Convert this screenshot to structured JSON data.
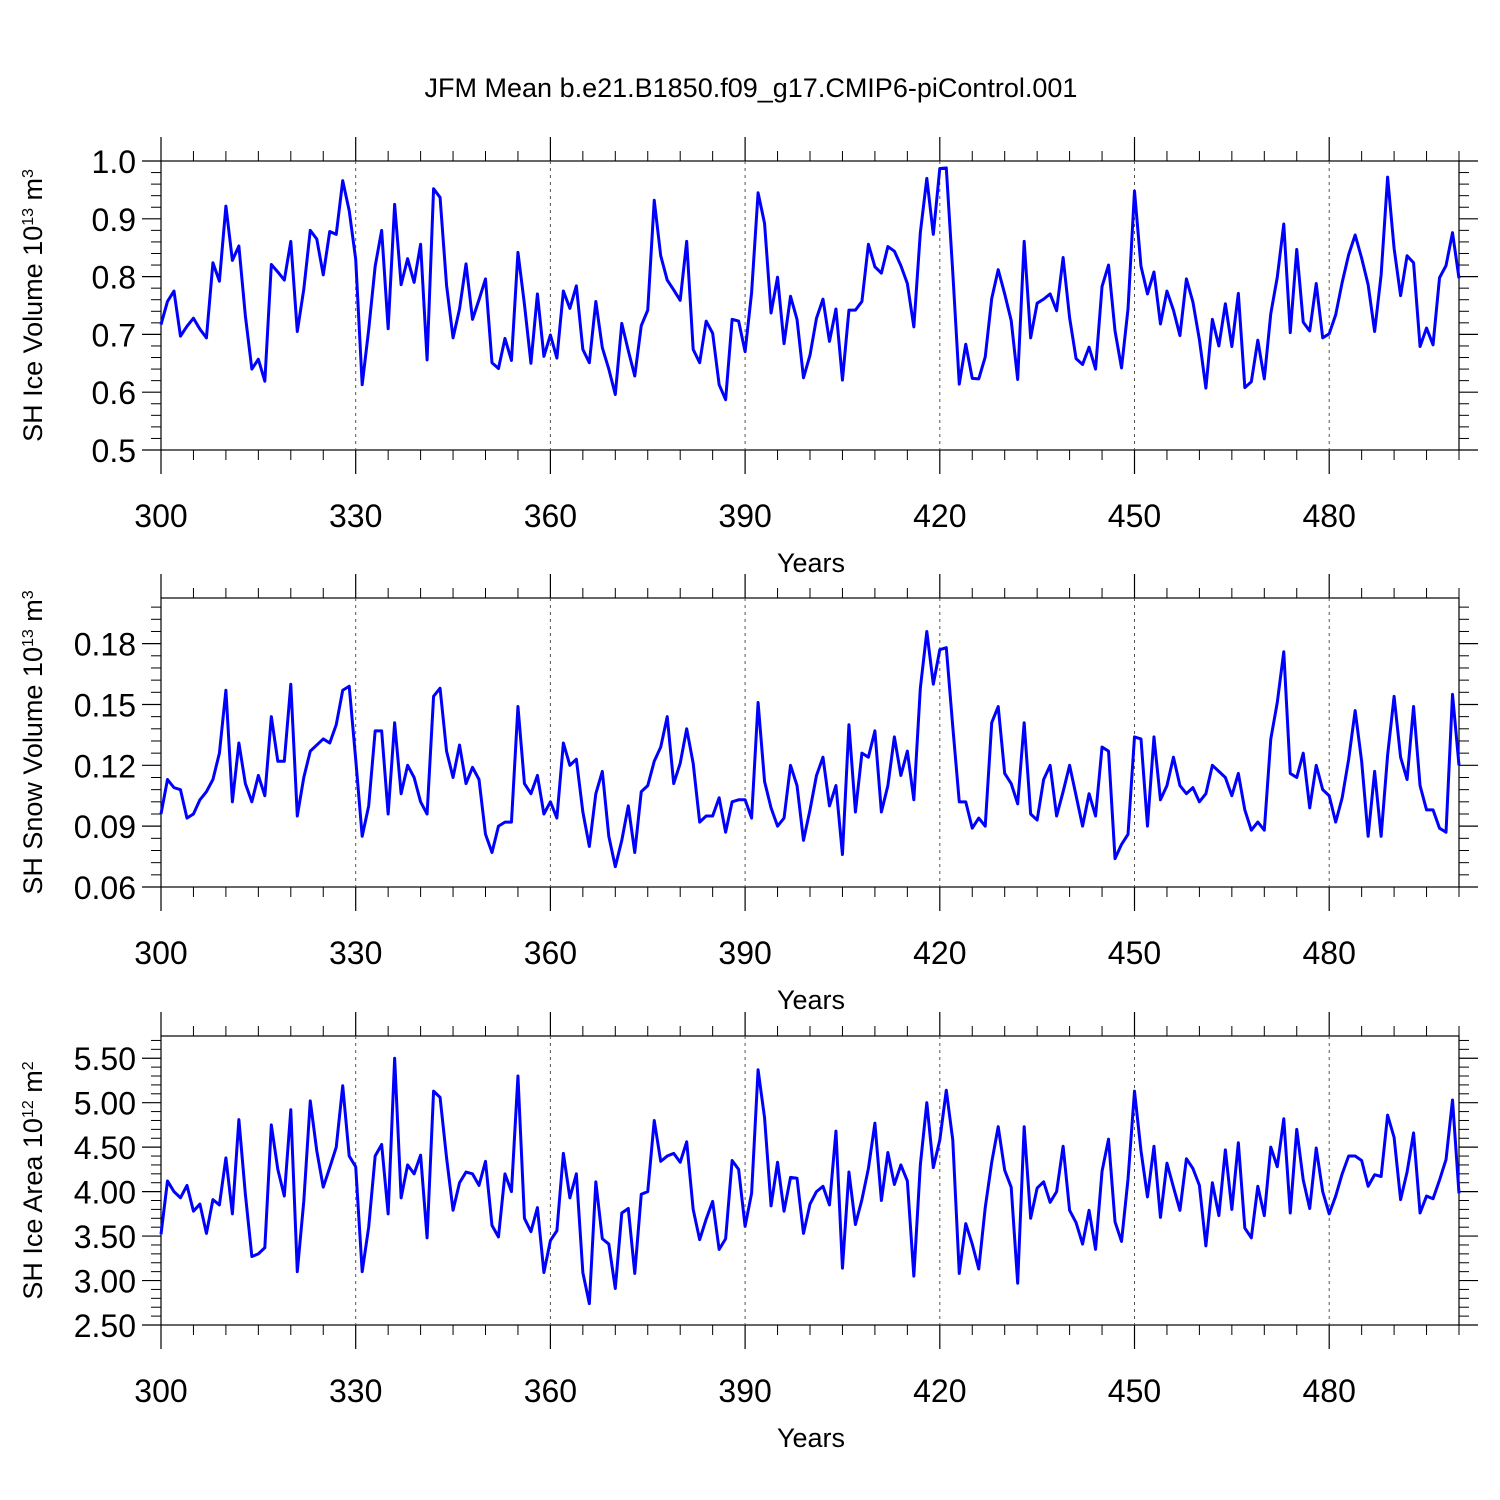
{
  "title": "JFM Mean b.e21.B1850.f09_g17.CMIP6-piControl.001",
  "line_color": "#0000ff",
  "chart_data": [
    {
      "type": "line",
      "title": "JFM Mean b.e21.B1850.f09_g17.CMIP6-piControl.001",
      "xlabel": "Years",
      "ylabel": {
        "pre": "SH Ice Volume 10",
        "exp": "13",
        "mid": " m",
        "unit_exp": "3"
      },
      "xlim": [
        300,
        500
      ],
      "ylim": [
        0.5,
        1.0
      ],
      "x_ticks": [
        300,
        330,
        360,
        390,
        420,
        450,
        480
      ],
      "x_tick_labels": [
        "300",
        "330",
        "360",
        "390",
        "420",
        "450",
        "480"
      ],
      "y_ticks": [
        0.5,
        0.6,
        0.7,
        0.8,
        0.9,
        1.0
      ],
      "y_tick_labels": [
        "0.5",
        "0.6",
        "0.7",
        "0.8",
        "0.9",
        "1.0"
      ],
      "grid_x": [
        330,
        360,
        390,
        420,
        450,
        480
      ],
      "x_start": 300,
      "series": [
        {
          "name": "SH Ice Volume",
          "values": [
            0.717,
            0.757,
            0.775,
            0.697,
            0.714,
            0.728,
            0.709,
            0.694,
            0.824,
            0.792,
            0.922,
            0.828,
            0.853,
            0.732,
            0.64,
            0.657,
            0.619,
            0.821,
            0.808,
            0.794,
            0.861,
            0.705,
            0.778,
            0.88,
            0.865,
            0.803,
            0.878,
            0.873,
            0.966,
            0.914,
            0.83,
            0.613,
            0.708,
            0.818,
            0.88,
            0.71,
            0.925,
            0.786,
            0.831,
            0.79,
            0.856,
            0.656,
            0.952,
            0.937,
            0.785,
            0.694,
            0.744,
            0.822,
            0.726,
            0.76,
            0.796,
            0.651,
            0.641,
            0.693,
            0.655,
            0.842,
            0.752,
            0.65,
            0.77,
            0.662,
            0.699,
            0.659,
            0.775,
            0.745,
            0.784,
            0.674,
            0.651,
            0.757,
            0.677,
            0.64,
            0.596,
            0.719,
            0.672,
            0.628,
            0.715,
            0.742,
            0.932,
            0.836,
            0.794,
            0.777,
            0.759,
            0.861,
            0.674,
            0.651,
            0.723,
            0.702,
            0.613,
            0.587,
            0.726,
            0.723,
            0.67,
            0.772,
            0.945,
            0.892,
            0.737,
            0.799,
            0.684,
            0.766,
            0.726,
            0.625,
            0.664,
            0.728,
            0.761,
            0.688,
            0.744,
            0.621,
            0.742,
            0.742,
            0.757,
            0.856,
            0.817,
            0.806,
            0.852,
            0.844,
            0.819,
            0.788,
            0.713,
            0.876,
            0.97,
            0.873,
            0.987,
            0.988,
            0.807,
            0.614,
            0.683,
            0.624,
            0.623,
            0.661,
            0.762,
            0.812,
            0.77,
            0.724,
            0.622,
            0.861,
            0.694,
            0.754,
            0.761,
            0.77,
            0.741,
            0.833,
            0.729,
            0.658,
            0.648,
            0.678,
            0.64,
            0.783,
            0.82,
            0.706,
            0.642,
            0.744,
            0.948,
            0.818,
            0.77,
            0.808,
            0.718,
            0.775,
            0.742,
            0.698,
            0.796,
            0.756,
            0.691,
            0.607,
            0.726,
            0.68,
            0.753,
            0.679,
            0.771,
            0.608,
            0.618,
            0.69,
            0.623,
            0.736,
            0.799,
            0.891,
            0.703,
            0.847,
            0.721,
            0.706,
            0.788,
            0.694,
            0.701,
            0.734,
            0.79,
            0.838,
            0.872,
            0.832,
            0.786,
            0.705,
            0.803,
            0.972,
            0.849,
            0.767,
            0.836,
            0.824,
            0.679,
            0.711,
            0.682,
            0.798,
            0.819,
            0.876,
            0.797
          ]
        }
      ]
    },
    {
      "type": "line",
      "xlabel": "Years",
      "ylabel": {
        "pre": "SH Snow Volume 10",
        "exp": "13",
        "mid": " m",
        "unit_exp": "3"
      },
      "xlim": [
        300,
        500
      ],
      "ylim": [
        0.06,
        0.2025
      ],
      "x_ticks": [
        300,
        330,
        360,
        390,
        420,
        450,
        480
      ],
      "x_tick_labels": [
        "300",
        "330",
        "360",
        "390",
        "420",
        "450",
        "480"
      ],
      "y_ticks": [
        0.06,
        0.09,
        0.12,
        0.15,
        0.18
      ],
      "y_tick_labels": [
        "0.06",
        "0.09",
        "0.12",
        "0.15",
        "0.18"
      ],
      "grid_x": [
        330,
        360,
        390,
        420,
        450,
        480
      ],
      "x_start": 300,
      "series": [
        {
          "name": "SH Snow Volume",
          "values": [
            0.096,
            0.113,
            0.109,
            0.108,
            0.094,
            0.096,
            0.103,
            0.107,
            0.113,
            0.126,
            0.157,
            0.102,
            0.131,
            0.111,
            0.102,
            0.115,
            0.105,
            0.144,
            0.122,
            0.122,
            0.16,
            0.095,
            0.114,
            0.127,
            0.13,
            0.133,
            0.131,
            0.14,
            0.157,
            0.159,
            0.123,
            0.085,
            0.1,
            0.137,
            0.137,
            0.096,
            0.141,
            0.106,
            0.12,
            0.114,
            0.102,
            0.096,
            0.154,
            0.158,
            0.127,
            0.114,
            0.13,
            0.111,
            0.119,
            0.113,
            0.086,
            0.077,
            0.09,
            0.092,
            0.092,
            0.149,
            0.111,
            0.106,
            0.115,
            0.096,
            0.102,
            0.094,
            0.131,
            0.12,
            0.123,
            0.097,
            0.08,
            0.106,
            0.117,
            0.085,
            0.07,
            0.083,
            0.1,
            0.077,
            0.107,
            0.11,
            0.122,
            0.129,
            0.144,
            0.111,
            0.121,
            0.138,
            0.121,
            0.092,
            0.095,
            0.095,
            0.104,
            0.087,
            0.102,
            0.103,
            0.103,
            0.094,
            0.151,
            0.112,
            0.099,
            0.09,
            0.094,
            0.12,
            0.11,
            0.083,
            0.098,
            0.115,
            0.124,
            0.1,
            0.11,
            0.076,
            0.14,
            0.097,
            0.126,
            0.124,
            0.137,
            0.097,
            0.11,
            0.134,
            0.115,
            0.127,
            0.103,
            0.158,
            0.186,
            0.16,
            0.177,
            0.178,
            0.139,
            0.102,
            0.102,
            0.089,
            0.094,
            0.09,
            0.141,
            0.149,
            0.116,
            0.111,
            0.101,
            0.141,
            0.096,
            0.093,
            0.113,
            0.12,
            0.095,
            0.107,
            0.12,
            0.105,
            0.09,
            0.106,
            0.095,
            0.129,
            0.127,
            0.074,
            0.081,
            0.086,
            0.134,
            0.133,
            0.09,
            0.134,
            0.103,
            0.11,
            0.124,
            0.11,
            0.106,
            0.109,
            0.102,
            0.106,
            0.12,
            0.117,
            0.114,
            0.105,
            0.116,
            0.098,
            0.088,
            0.092,
            0.088,
            0.133,
            0.151,
            0.176,
            0.116,
            0.114,
            0.126,
            0.099,
            0.12,
            0.108,
            0.105,
            0.092,
            0.104,
            0.123,
            0.147,
            0.122,
            0.085,
            0.117,
            0.085,
            0.125,
            0.154,
            0.124,
            0.113,
            0.149,
            0.11,
            0.098,
            0.098,
            0.089,
            0.087,
            0.155,
            0.12
          ]
        }
      ]
    },
    {
      "type": "line",
      "xlabel": "Years",
      "ylabel": {
        "pre": "SH Ice Area 10",
        "exp": "12",
        "mid": " m",
        "unit_exp": "2"
      },
      "xlim": [
        300,
        500
      ],
      "ylim": [
        2.5,
        5.75
      ],
      "x_ticks": [
        300,
        330,
        360,
        390,
        420,
        450,
        480
      ],
      "x_tick_labels": [
        "300",
        "330",
        "360",
        "390",
        "420",
        "450",
        "480"
      ],
      "y_ticks": [
        2.5,
        3.0,
        3.5,
        4.0,
        4.5,
        5.0,
        5.5
      ],
      "y_tick_labels": [
        "2.50",
        "3.00",
        "3.50",
        "4.00",
        "4.50",
        "5.00",
        "5.50"
      ],
      "grid_x": [
        330,
        360,
        390,
        420,
        450,
        480
      ],
      "x_start": 300,
      "series": [
        {
          "name": "SH Ice Area",
          "values": [
            3.52,
            4.12,
            4.0,
            3.93,
            4.07,
            3.78,
            3.86,
            3.53,
            3.91,
            3.85,
            4.38,
            3.75,
            4.81,
            3.97,
            3.27,
            3.3,
            3.37,
            4.75,
            4.25,
            3.95,
            4.92,
            3.1,
            3.89,
            5.02,
            4.46,
            4.05,
            4.27,
            4.5,
            5.19,
            4.4,
            4.28,
            3.1,
            3.6,
            4.4,
            4.53,
            3.75,
            5.5,
            3.93,
            4.3,
            4.2,
            4.41,
            3.48,
            5.13,
            5.06,
            4.38,
            3.79,
            4.1,
            4.22,
            4.2,
            4.07,
            4.34,
            3.62,
            3.49,
            4.2,
            4.0,
            5.3,
            3.7,
            3.55,
            3.82,
            3.09,
            3.45,
            3.56,
            4.43,
            3.93,
            4.2,
            3.09,
            2.74,
            4.11,
            3.47,
            3.41,
            2.91,
            3.76,
            3.81,
            3.08,
            3.97,
            4.0,
            4.8,
            4.34,
            4.4,
            4.43,
            4.33,
            4.56,
            3.8,
            3.46,
            3.69,
            3.89,
            3.35,
            3.47,
            4.35,
            4.25,
            3.61,
            3.98,
            5.37,
            4.83,
            3.84,
            4.33,
            3.78,
            4.16,
            4.15,
            3.53,
            3.86,
            4.0,
            4.06,
            3.85,
            4.68,
            3.14,
            4.22,
            3.63,
            3.91,
            4.26,
            4.77,
            3.9,
            4.44,
            4.08,
            4.3,
            4.12,
            3.05,
            4.3,
            5.0,
            4.27,
            4.58,
            5.14,
            4.58,
            3.08,
            3.64,
            3.41,
            3.13,
            3.82,
            4.33,
            4.73,
            4.24,
            4.05,
            2.97,
            4.73,
            3.7,
            4.04,
            4.11,
            3.88,
            4.0,
            4.51,
            3.79,
            3.65,
            3.41,
            3.79,
            3.35,
            4.23,
            4.59,
            3.66,
            3.44,
            4.14,
            5.13,
            4.46,
            3.94,
            4.51,
            3.71,
            4.32,
            4.05,
            3.79,
            4.37,
            4.26,
            4.07,
            3.39,
            4.1,
            3.73,
            4.47,
            3.8,
            4.55,
            3.59,
            3.48,
            4.06,
            3.73,
            4.5,
            4.28,
            4.82,
            3.76,
            4.7,
            4.13,
            3.81,
            4.49,
            4.0,
            3.75,
            3.95,
            4.2,
            4.4,
            4.4,
            4.35,
            4.06,
            4.19,
            4.17,
            4.86,
            4.61,
            3.91,
            4.22,
            4.66,
            3.76,
            3.95,
            3.92,
            4.13,
            4.36,
            5.03,
            3.98
          ]
        }
      ]
    }
  ]
}
